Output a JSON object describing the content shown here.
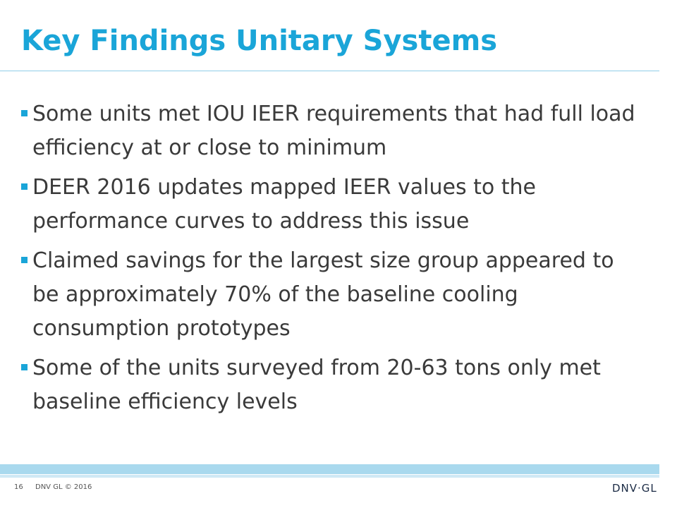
{
  "title": "Key Findings Unitary Systems",
  "bullets": [
    "Some units met IOU IEER requirements that had full load efficiency at or close to minimum",
    "DEER 2016 updates mapped IEER values to the performance curves to address this issue",
    "Claimed savings for the largest size group appeared to be approximately 70% of the baseline cooling consumption prototypes",
    "Some of the units surveyed from 20-63 tons only met baseline efficiency levels"
  ],
  "footer": {
    "page_number": "16",
    "copyright": "DNV GL © 2016",
    "logo_text": "DNV·GL"
  },
  "colors": {
    "accent": "#1aa5d8",
    "text": "#3a3a3a",
    "footer_band": "#a9d9ee"
  },
  "icons": {
    "bullet": "square-bullet-icon"
  }
}
